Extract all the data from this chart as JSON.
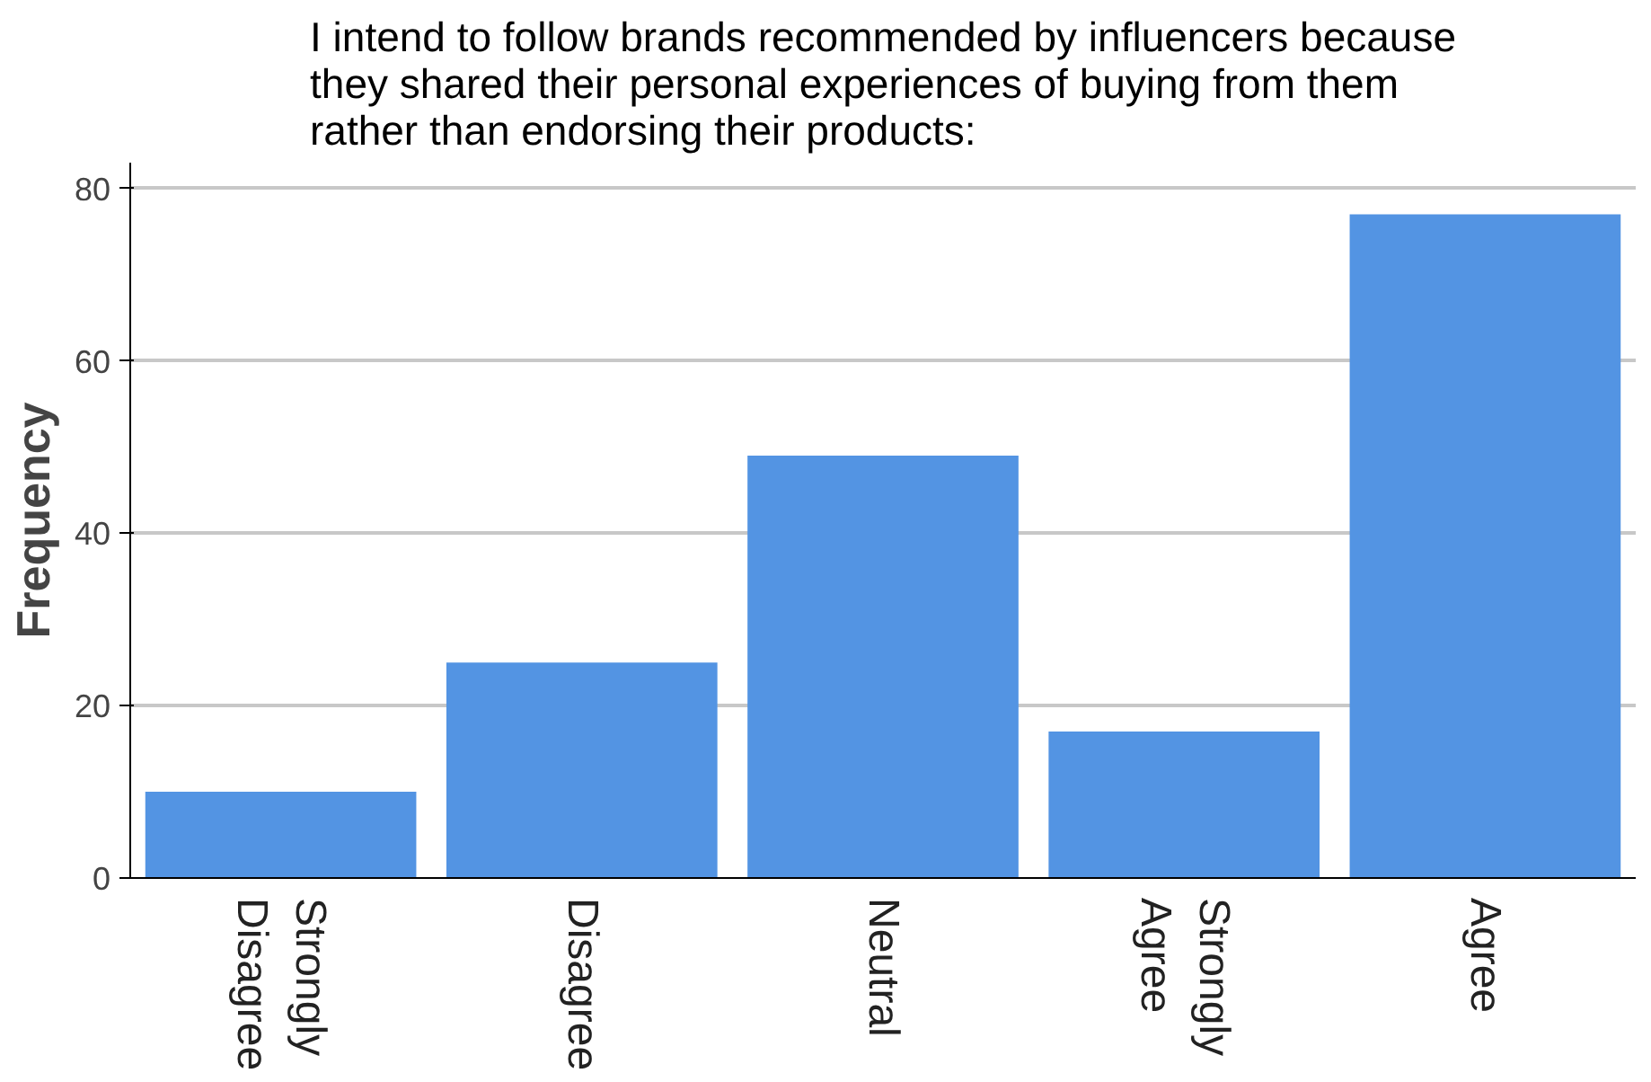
{
  "chart_data": {
    "type": "bar",
    "title": "I intend to follow brands recommended by influencers because they shared their personal experiences of buying from them rather than endorsing their products:",
    "ylabel": "Frequency",
    "categories": [
      "Strongly Disagree",
      "Disagree",
      "Neutral",
      "Strongly Agree",
      "Agree"
    ],
    "values": [
      10,
      25,
      49,
      17,
      77
    ],
    "color": "#5394e3",
    "ylim": [
      0,
      83
    ],
    "yticks": [
      0,
      20,
      40,
      60,
      80
    ],
    "grid": "y"
  }
}
